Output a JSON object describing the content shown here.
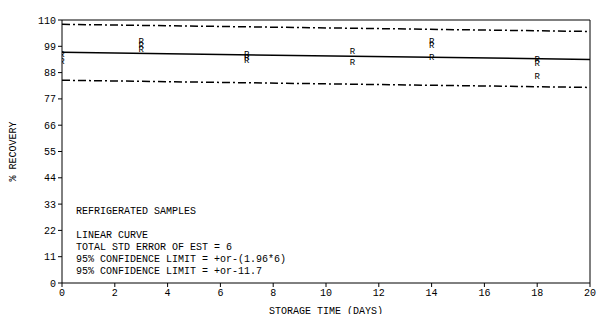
{
  "chart_data": {
    "type": "scatter",
    "x_label": "STORAGE TIME (DAYS)",
    "y_label": "% RECOVERY",
    "annotations": [
      "REFRIGERATED SAMPLES",
      "LINEAR CURVE",
      "TOTAL STD ERROR OF EST = 6",
      "95% CONFIDENCE LIMIT = +or-(1.96*6)",
      "95% CONFIDENCE LIMIT = +or-11.7"
    ],
    "xlim": [
      0,
      20
    ],
    "xticks": [
      0,
      2,
      4,
      6,
      8,
      10,
      12,
      14,
      16,
      18,
      20
    ],
    "ylim": [
      0,
      110
    ],
    "yticks": [
      0,
      11,
      22,
      33,
      44,
      55,
      66,
      77,
      88,
      99,
      110
    ],
    "color": "#000000",
    "grid": false,
    "series": [
      {
        "type": "scatter",
        "marker": "R",
        "color": "#000000",
        "x": [
          0,
          0,
          3,
          3,
          3,
          7,
          7,
          7,
          11,
          11,
          14,
          14,
          14,
          18,
          18,
          18
        ],
        "values": [
          95.4,
          92.4,
          100.8,
          99.1,
          97.4,
          95.4,
          94.1,
          92.8,
          96.6,
          92.0,
          100.8,
          99.1,
          94.1,
          93.3,
          91.6,
          86.2
        ]
      },
      {
        "type": "line",
        "line_style": "solid",
        "color": "#000000",
        "x": [
          0,
          20
        ],
        "values": [
          96.5,
          93.5
        ]
      },
      {
        "type": "line",
        "line_style": "dashdot",
        "color": "#000000",
        "x": [
          0,
          20
        ],
        "values": [
          108.2,
          105.2
        ]
      },
      {
        "type": "line",
        "line_style": "dashdot",
        "color": "#000000",
        "x": [
          0,
          20
        ],
        "values": [
          84.8,
          81.8
        ]
      }
    ]
  }
}
